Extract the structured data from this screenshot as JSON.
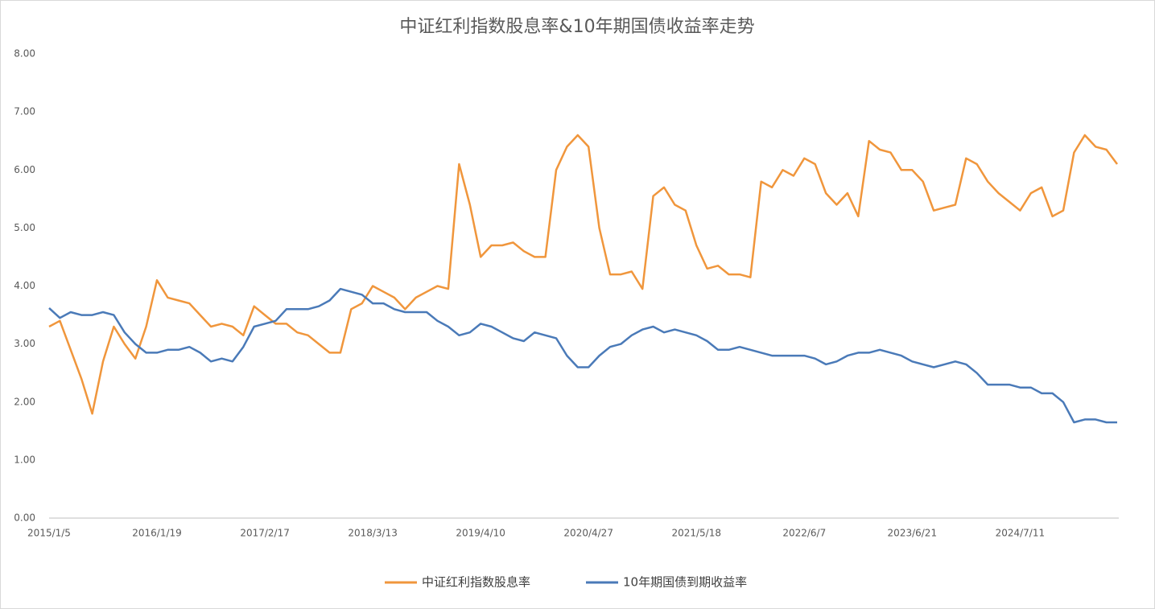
{
  "chart_data": {
    "type": "line",
    "title": "中证红利指数股息率&10年期国债收益率走势",
    "categories": [
      "2015/1/5",
      null,
      null,
      null,
      null,
      null,
      null,
      null,
      null,
      null,
      "2016/1/19",
      null,
      null,
      null,
      null,
      null,
      null,
      null,
      null,
      null,
      "2017/2/17",
      null,
      null,
      null,
      null,
      null,
      null,
      null,
      null,
      null,
      "2018/3/13",
      null,
      null,
      null,
      null,
      null,
      null,
      null,
      null,
      null,
      "2019/4/10",
      null,
      null,
      null,
      null,
      null,
      null,
      null,
      null,
      null,
      "2020/4/27",
      null,
      null,
      null,
      null,
      null,
      null,
      null,
      null,
      null,
      "2021/5/18",
      null,
      null,
      null,
      null,
      null,
      null,
      null,
      null,
      null,
      "2022/6/7",
      null,
      null,
      null,
      null,
      null,
      null,
      null,
      null,
      null,
      "2023/6/21",
      null,
      null,
      null,
      null,
      null,
      null,
      null,
      null,
      null,
      "2024/7/11",
      null,
      null,
      null,
      null,
      null,
      null,
      null,
      null,
      null
    ],
    "series": [
      {
        "name": "中证红利指数股息率",
        "color": "#f0963c",
        "values": [
          3.3,
          3.4,
          2.9,
          2.4,
          1.8,
          2.7,
          3.3,
          3.0,
          2.75,
          3.3,
          4.1,
          3.8,
          3.75,
          3.7,
          3.5,
          3.3,
          3.35,
          3.3,
          3.15,
          3.65,
          3.5,
          3.35,
          3.35,
          3.2,
          3.15,
          3.0,
          2.85,
          2.85,
          3.6,
          3.7,
          4.0,
          3.9,
          3.8,
          3.6,
          3.8,
          3.9,
          4.0,
          3.95,
          6.1,
          5.4,
          4.5,
          4.7,
          4.7,
          4.75,
          4.6,
          4.5,
          4.5,
          6.0,
          6.4,
          6.6,
          6.4,
          5.0,
          4.2,
          4.2,
          4.25,
          3.95,
          5.55,
          5.7,
          5.4,
          5.3,
          4.7,
          4.3,
          4.35,
          4.2,
          4.2,
          4.15,
          5.8,
          5.7,
          6.0,
          5.9,
          6.2,
          6.1,
          5.6,
          5.4,
          5.6,
          5.2,
          6.5,
          6.35,
          6.3,
          6.0,
          6.0,
          5.8,
          5.3,
          5.35,
          5.4,
          6.2,
          6.1,
          5.8,
          5.6,
          5.45,
          5.3,
          5.6,
          5.7,
          5.2,
          5.3,
          6.3,
          6.6,
          6.4,
          6.35,
          6.1
        ]
      },
      {
        "name": "10年期国债到期收益率",
        "color": "#4a7ab8",
        "values": [
          3.62,
          3.45,
          3.55,
          3.5,
          3.5,
          3.55,
          3.5,
          3.2,
          3.0,
          2.85,
          2.85,
          2.9,
          2.9,
          2.95,
          2.85,
          2.7,
          2.75,
          2.7,
          2.95,
          3.3,
          3.35,
          3.4,
          3.6,
          3.6,
          3.6,
          3.65,
          3.75,
          3.95,
          3.9,
          3.85,
          3.7,
          3.7,
          3.6,
          3.55,
          3.55,
          3.55,
          3.4,
          3.3,
          3.15,
          3.2,
          3.35,
          3.3,
          3.2,
          3.1,
          3.05,
          3.2,
          3.15,
          3.1,
          2.8,
          2.6,
          2.6,
          2.8,
          2.95,
          3.0,
          3.15,
          3.25,
          3.3,
          3.2,
          3.25,
          3.2,
          3.15,
          3.05,
          2.9,
          2.9,
          2.95,
          2.9,
          2.85,
          2.8,
          2.8,
          2.8,
          2.8,
          2.75,
          2.65,
          2.7,
          2.8,
          2.85,
          2.85,
          2.9,
          2.85,
          2.8,
          2.7,
          2.65,
          2.6,
          2.65,
          2.7,
          2.65,
          2.5,
          2.3,
          2.3,
          2.3,
          2.25,
          2.25,
          2.15,
          2.15,
          2.0,
          1.65,
          1.7,
          1.7,
          1.65,
          1.65
        ]
      }
    ],
    "ylim": [
      0,
      8
    ],
    "yticks": [
      {
        "value": 0,
        "label": "0.00"
      },
      {
        "value": 1,
        "label": "1.00"
      },
      {
        "value": 2,
        "label": "2.00"
      },
      {
        "value": 3,
        "label": "3.00"
      },
      {
        "value": 4,
        "label": "4.00"
      },
      {
        "value": 5,
        "label": "5.00"
      },
      {
        "value": 6,
        "label": "6.00"
      },
      {
        "value": 7,
        "label": "7.00"
      },
      {
        "value": 8,
        "label": "8.00"
      }
    ],
    "grid": false,
    "legend": "bottom"
  }
}
